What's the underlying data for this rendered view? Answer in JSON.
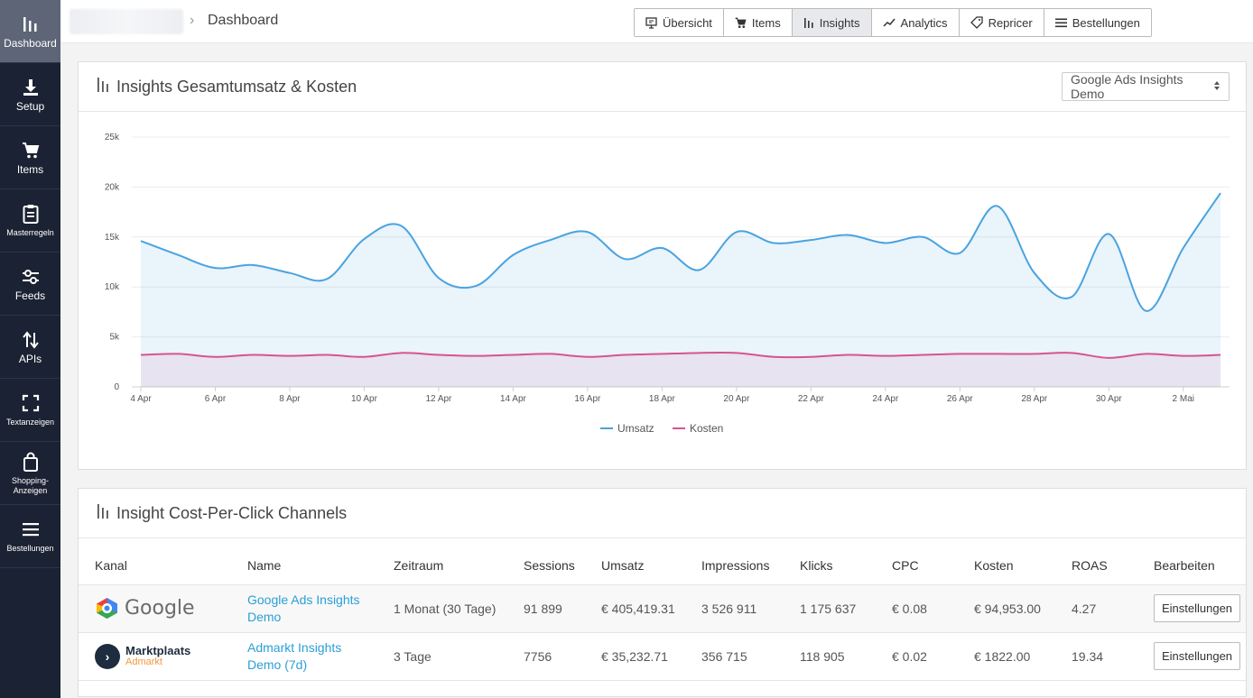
{
  "sidebar": {
    "items": [
      {
        "label": "Dashboard",
        "icon": "bar-chart-icon"
      },
      {
        "label": "Setup",
        "icon": "download-icon"
      },
      {
        "label": "Items",
        "icon": "cart-icon"
      },
      {
        "label": "Masterregeln",
        "icon": "clipboard-icon"
      },
      {
        "label": "Feeds",
        "icon": "sliders-icon"
      },
      {
        "label": "APIs",
        "icon": "arrows-updown-icon"
      },
      {
        "label": "Textanzeigen",
        "icon": "expand-icon"
      },
      {
        "label": "Shopping-Anzeigen",
        "icon": "bag-icon"
      },
      {
        "label": "Bestellungen",
        "icon": "list-icon"
      }
    ]
  },
  "header": {
    "title": "Dashboard",
    "nav": [
      {
        "label": "Übersicht",
        "icon": "presentation-icon"
      },
      {
        "label": "Items",
        "icon": "cart-icon"
      },
      {
        "label": "Insights",
        "icon": "bar-chart-icon"
      },
      {
        "label": "Analytics",
        "icon": "trend-icon"
      },
      {
        "label": "Repricer",
        "icon": "tag-icon"
      },
      {
        "label": "Bestellungen",
        "icon": "list-icon"
      }
    ]
  },
  "chart_panel": {
    "title": "Insights Gesamtumsatz & Kosten",
    "select_value": "Google Ads Insights Demo"
  },
  "chart_data": {
    "type": "area",
    "x": [
      "4 Apr",
      "5 Apr",
      "6 Apr",
      "7 Apr",
      "8 Apr",
      "9 Apr",
      "10 Apr",
      "11 Apr",
      "12 Apr",
      "13 Apr",
      "14 Apr",
      "15 Apr",
      "16 Apr",
      "17 Apr",
      "18 Apr",
      "19 Apr",
      "20 Apr",
      "21 Apr",
      "22 Apr",
      "23 Apr",
      "24 Apr",
      "25 Apr",
      "26 Apr",
      "27 Apr",
      "28 Apr",
      "29 Apr",
      "30 Apr",
      "1 Mai",
      "2 Mai",
      "3 Mai"
    ],
    "x_tick_labels": [
      "4 Apr",
      "6 Apr",
      "8 Apr",
      "10 Apr",
      "12 Apr",
      "14 Apr",
      "16 Apr",
      "18 Apr",
      "20 Apr",
      "22 Apr",
      "24 Apr",
      "26 Apr",
      "28 Apr",
      "30 Apr",
      "2 Mai"
    ],
    "y_tick_labels": [
      "0",
      "5k",
      "10k",
      "15k",
      "20k",
      "25k"
    ],
    "ylim": [
      0,
      25000
    ],
    "grid": true,
    "legend_position": "bottom",
    "series": [
      {
        "name": "Umsatz",
        "color": "#4aa3df",
        "values": [
          14600,
          13200,
          11900,
          12200,
          11400,
          10800,
          14800,
          16100,
          10900,
          10100,
          13200,
          14700,
          15500,
          12800,
          13900,
          11700,
          15500,
          14400,
          14700,
          15200,
          14400,
          15000,
          13400,
          18100,
          11400,
          9000,
          15300,
          7600,
          13900,
          19400
        ]
      },
      {
        "name": "Kosten",
        "color": "#d85390",
        "values": [
          3200,
          3300,
          3000,
          3200,
          3100,
          3200,
          3000,
          3400,
          3200,
          3100,
          3200,
          3300,
          3000,
          3200,
          3300,
          3400,
          3400,
          3000,
          3000,
          3200,
          3100,
          3200,
          3300,
          3300,
          3300,
          3400,
          2900,
          3300,
          3100,
          3200
        ]
      }
    ]
  },
  "table_panel": {
    "title": "Insight Cost-Per-Click Channels",
    "columns": [
      "Kanal",
      "Name",
      "Zeitraum",
      "Sessions",
      "Umsatz",
      "Impressions",
      "Klicks",
      "CPC",
      "Kosten",
      "ROAS",
      "Bearbeiten"
    ],
    "rows": [
      {
        "logo": "Google",
        "name": "Google Ads Insights Demo",
        "zeitraum": "1 Monat (30 Tage)",
        "sessions": "91 899",
        "umsatz": "€ 405,419.31",
        "impressions": "3 526 911",
        "klicks": "1 175 637",
        "cpc": "€ 0.08",
        "kosten": "€ 94,953.00",
        "roas": "4.27",
        "button": "Einstellungen"
      },
      {
        "logo": "Marktplaats",
        "logo_sub": "Admarkt",
        "name": "Admarkt Insights Demo (7d)",
        "zeitraum": "3 Tage",
        "sessions": "7756",
        "umsatz": "€ 35,232.71",
        "impressions": "356 715",
        "klicks": "118 905",
        "cpc": "€ 0.02",
        "kosten": "€ 1822.00",
        "roas": "19.34",
        "button": "Einstellungen"
      }
    ]
  }
}
